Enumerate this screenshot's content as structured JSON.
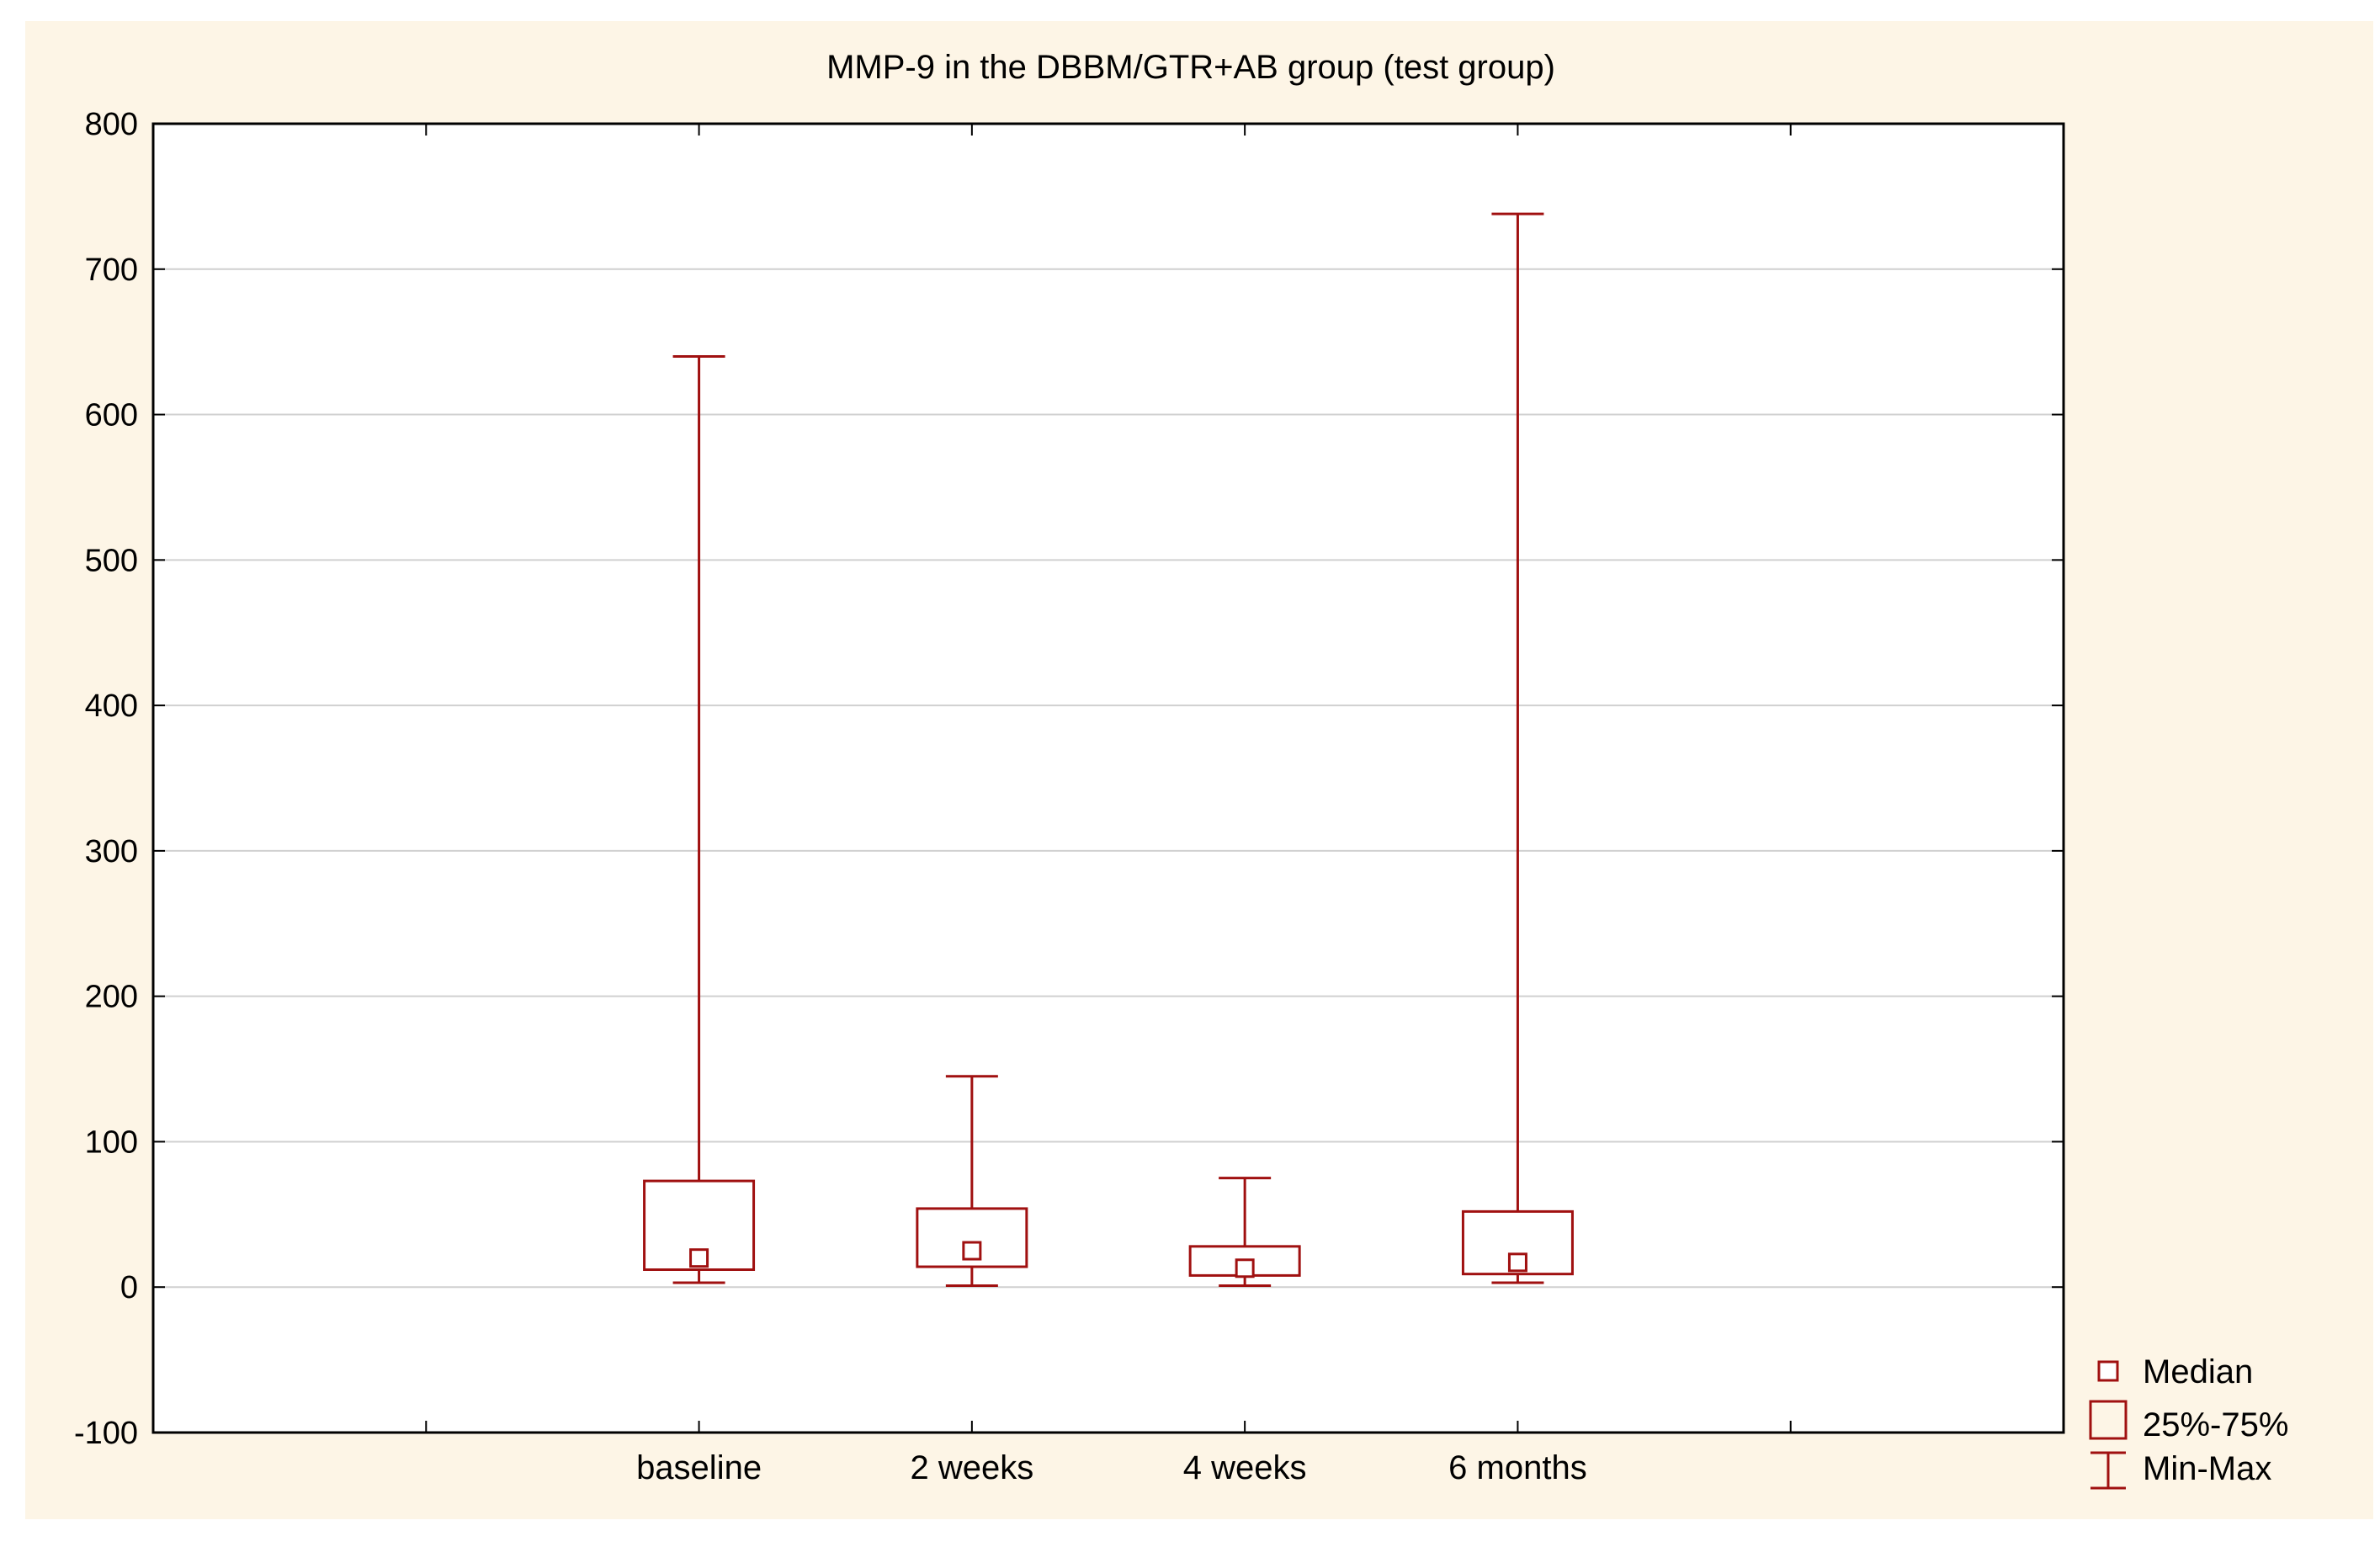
{
  "chart_data": {
    "type": "box",
    "title": "MMP-9 in the DBBM/GTR+AB group (test group)",
    "xlabel": "",
    "ylabel": "",
    "ylim": [
      -100,
      800
    ],
    "yticks": [
      800,
      700,
      600,
      500,
      400,
      300,
      200,
      100,
      0,
      -100
    ],
    "categories": [
      "baseline",
      "2 weeks",
      "4 weeks",
      "6 months"
    ],
    "series": [
      {
        "boxes": [
          {
            "min": 3,
            "q1": 12,
            "median": 20,
            "q3": 73,
            "max": 640
          },
          {
            "min": 1,
            "q1": 14,
            "median": 25,
            "q3": 54,
            "max": 145
          },
          {
            "min": 1,
            "q1": 8,
            "median": 13,
            "q3": 28,
            "max": 75
          },
          {
            "min": 3,
            "q1": 9,
            "median": 17,
            "q3": 52,
            "max": 738
          }
        ]
      }
    ],
    "legend": {
      "position": "bottom-right",
      "items": [
        "Median",
        "25%-75%",
        "Min-Max"
      ]
    },
    "grid": true,
    "colors": {
      "series": "#a01010",
      "grid": "#d0d0d0",
      "axis": "#000000",
      "background": "#fdf5e6",
      "plot": "#ffffff"
    }
  }
}
